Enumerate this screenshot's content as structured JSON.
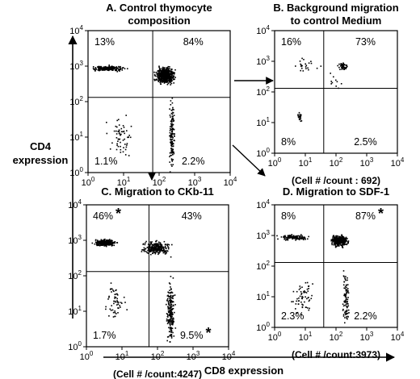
{
  "figure": {
    "y_axis_label": [
      "CD4",
      "expression"
    ],
    "x_axis_label": "CD8 expression",
    "log_tick_labels": [
      "0",
      "1",
      "2",
      "3",
      "4"
    ]
  },
  "chart_data": [
    {
      "type": "scatter",
      "title": [
        "A.  Control thymocyte",
        "composition"
      ],
      "xlabel": "CD8 expression",
      "ylabel": "CD4 expression",
      "xlim": [
        1,
        10000
      ],
      "ylim": [
        1,
        10000
      ],
      "log_scale": true,
      "quadrant_percentages": {
        "upper_left": "13%",
        "upper_right": "84%",
        "lower_left": "1.1%",
        "lower_right": "2.2%"
      },
      "caption": "",
      "asterisks": []
    },
    {
      "type": "scatter",
      "title": [
        "B.  Background migration",
        "to control Medium"
      ],
      "xlabel": "CD8 expression",
      "ylabel": "CD4 expression",
      "xlim": [
        1,
        10000
      ],
      "ylim": [
        1,
        10000
      ],
      "log_scale": true,
      "quadrant_percentages": {
        "upper_left": "16%",
        "upper_right": "73%",
        "lower_left": "8%",
        "lower_right": "2.5%"
      },
      "caption": "(Cell # /count : 692)",
      "asterisks": []
    },
    {
      "type": "scatter",
      "title": [
        "C.  Migration to CKb-11"
      ],
      "xlabel": "CD8 expression",
      "ylabel": "CD4 expression",
      "xlim": [
        1,
        10000
      ],
      "ylim": [
        1,
        10000
      ],
      "log_scale": true,
      "quadrant_percentages": {
        "upper_left": "46%",
        "upper_right": "43%",
        "lower_left": "1.7%",
        "lower_right": "9.5%"
      },
      "caption": "(Cell # /count:4247)",
      "asterisks": [
        "upper_left",
        "lower_right"
      ]
    },
    {
      "type": "scatter",
      "title": [
        "D.  Migration to SDF-1"
      ],
      "xlabel": "CD8 expression",
      "ylabel": "CD4 expression",
      "xlim": [
        1,
        10000
      ],
      "ylim": [
        1,
        10000
      ],
      "log_scale": true,
      "quadrant_percentages": {
        "upper_left": "8%",
        "upper_right": "87%",
        "lower_left": "2.3%",
        "lower_right": "2.2%"
      },
      "caption": "(Cell # /count:3973)",
      "asterisks": [
        "upper_right"
      ]
    }
  ]
}
